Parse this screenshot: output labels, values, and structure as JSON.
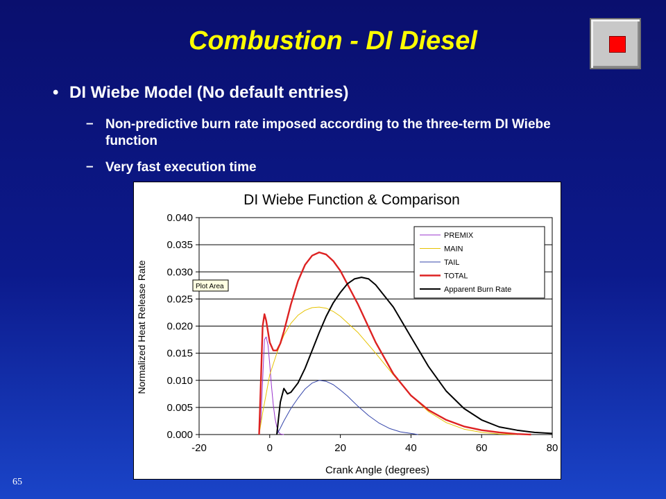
{
  "slide": {
    "title": "Combustion - DI Diesel",
    "bullet": "DI Wiebe Model (No default entries)",
    "subbullets": [
      "Non-predictive burn rate imposed according to the three-term DI Wiebe function",
      "Very fast execution time"
    ],
    "page_number": "65",
    "bullet_glyph": "•",
    "dash_glyph": "–"
  },
  "chart_data": {
    "type": "line",
    "title": "DI Wiebe Function & Comparison",
    "xlabel": "Crank Angle (degrees)",
    "ylabel": "Normalized Heat Release Rate",
    "xlim": [
      -20,
      80
    ],
    "ylim": [
      0,
      0.04
    ],
    "xticks": [
      "-20",
      "0",
      "20",
      "40",
      "60",
      "80"
    ],
    "yticks": [
      "0.000",
      "0.005",
      "0.010",
      "0.015",
      "0.020",
      "0.025",
      "0.030",
      "0.035",
      "0.040"
    ],
    "grid": true,
    "legend_position": "top-right",
    "plot_area_tooltip": "Plot Area",
    "series": [
      {
        "name": "PREMIX",
        "color": "#9933cc",
        "points": [
          [
            -3,
            0
          ],
          [
            -2.5,
            0.003
          ],
          [
            -2,
            0.01
          ],
          [
            -1.5,
            0.0175
          ],
          [
            -1,
            0.018
          ],
          [
            -0.5,
            0.0165
          ],
          [
            0,
            0.013
          ],
          [
            0.5,
            0.009
          ],
          [
            1,
            0.0055
          ],
          [
            1.5,
            0.003
          ],
          [
            2,
            0.0014
          ],
          [
            2.5,
            0.0005
          ],
          [
            3,
            0.0001
          ],
          [
            4,
            0
          ]
        ]
      },
      {
        "name": "MAIN",
        "color": "#e6c200",
        "points": [
          [
            -3,
            0
          ],
          [
            -2,
            0.004
          ],
          [
            0,
            0.011
          ],
          [
            2,
            0.015
          ],
          [
            4,
            0.0183
          ],
          [
            6,
            0.0205
          ],
          [
            8,
            0.022
          ],
          [
            10,
            0.0229
          ],
          [
            12,
            0.0234
          ],
          [
            14,
            0.0235
          ],
          [
            16,
            0.0233
          ],
          [
            18,
            0.0227
          ],
          [
            20,
            0.0218
          ],
          [
            25,
            0.0188
          ],
          [
            30,
            0.015
          ],
          [
            35,
            0.011
          ],
          [
            40,
            0.0072
          ],
          [
            45,
            0.0042
          ],
          [
            50,
            0.0022
          ],
          [
            55,
            0.001
          ],
          [
            60,
            0.0004
          ],
          [
            65,
            0.0001
          ],
          [
            70,
            0
          ]
        ]
      },
      {
        "name": "TAIL",
        "color": "#3344aa",
        "points": [
          [
            2,
            0
          ],
          [
            3,
            0.0012
          ],
          [
            4,
            0.0025
          ],
          [
            6,
            0.0048
          ],
          [
            8,
            0.0067
          ],
          [
            10,
            0.0084
          ],
          [
            12,
            0.0095
          ],
          [
            14,
            0.01
          ],
          [
            16,
            0.0098
          ],
          [
            18,
            0.0092
          ],
          [
            20,
            0.0082
          ],
          [
            22,
            0.0071
          ],
          [
            25,
            0.0052
          ],
          [
            28,
            0.0035
          ],
          [
            31,
            0.0021
          ],
          [
            34,
            0.0011
          ],
          [
            37,
            0.0005
          ],
          [
            40,
            0.0002
          ],
          [
            42,
            0
          ]
        ]
      },
      {
        "name": "TOTAL",
        "color": "#dd2222",
        "points": [
          [
            -3,
            0
          ],
          [
            -2.5,
            0.01
          ],
          [
            -2,
            0.02
          ],
          [
            -1.5,
            0.0222
          ],
          [
            -1,
            0.021
          ],
          [
            0,
            0.017
          ],
          [
            1,
            0.0155
          ],
          [
            2,
            0.0155
          ],
          [
            3,
            0.0168
          ],
          [
            4,
            0.019
          ],
          [
            6,
            0.024
          ],
          [
            8,
            0.0283
          ],
          [
            10,
            0.0313
          ],
          [
            12,
            0.033
          ],
          [
            14,
            0.0336
          ],
          [
            16,
            0.0332
          ],
          [
            18,
            0.032
          ],
          [
            20,
            0.0302
          ],
          [
            25,
            0.024
          ],
          [
            30,
            0.017
          ],
          [
            35,
            0.0112
          ],
          [
            40,
            0.0072
          ],
          [
            45,
            0.0045
          ],
          [
            50,
            0.0027
          ],
          [
            55,
            0.0015
          ],
          [
            60,
            0.0008
          ],
          [
            65,
            0.0004
          ],
          [
            70,
            0.0001
          ],
          [
            74,
            0
          ]
        ]
      },
      {
        "name": "Apparent Burn Rate",
        "color": "#000000",
        "points": [
          [
            2,
            0
          ],
          [
            2.5,
            0.003
          ],
          [
            3,
            0.006
          ],
          [
            4,
            0.0085
          ],
          [
            5,
            0.0075
          ],
          [
            6,
            0.0078
          ],
          [
            8,
            0.0095
          ],
          [
            10,
            0.0122
          ],
          [
            12,
            0.0155
          ],
          [
            14,
            0.0188
          ],
          [
            16,
            0.0218
          ],
          [
            18,
            0.0243
          ],
          [
            20,
            0.0262
          ],
          [
            22,
            0.0278
          ],
          [
            24,
            0.0287
          ],
          [
            26,
            0.029
          ],
          [
            28,
            0.0287
          ],
          [
            30,
            0.0276
          ],
          [
            35,
            0.0235
          ],
          [
            40,
            0.018
          ],
          [
            45,
            0.0125
          ],
          [
            50,
            0.008
          ],
          [
            55,
            0.0048
          ],
          [
            60,
            0.0027
          ],
          [
            65,
            0.0014
          ],
          [
            70,
            0.0008
          ],
          [
            75,
            0.0004
          ],
          [
            80,
            0.0002
          ]
        ]
      }
    ]
  }
}
